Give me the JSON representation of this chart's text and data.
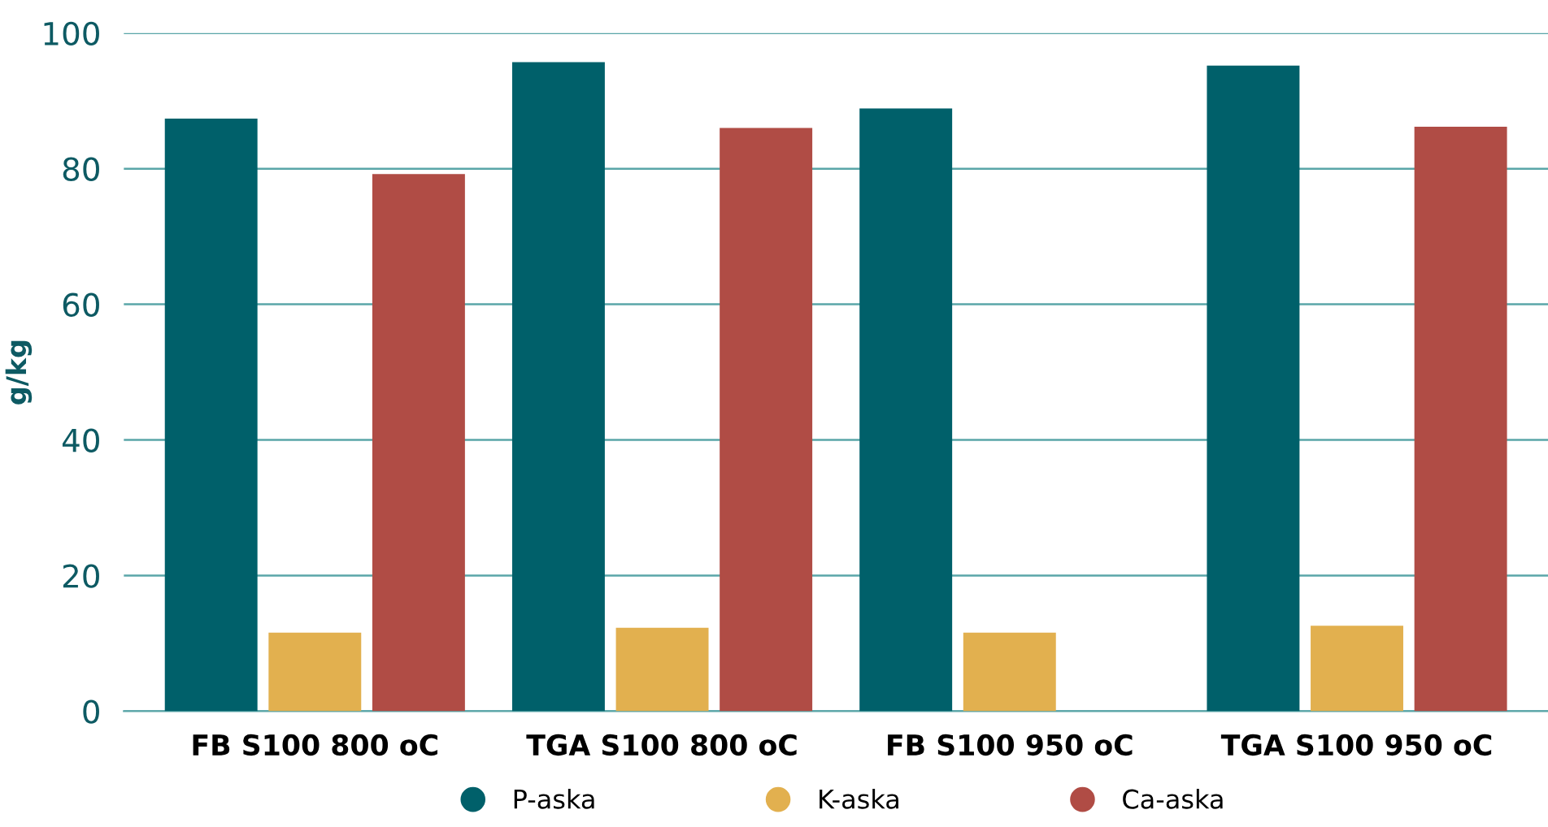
{
  "chart_data": {
    "type": "bar",
    "ylabel": "g/kg",
    "categories": [
      "FB S100 800 oC",
      "TGA S100 800 oC",
      "FB S100 950 oC",
      "TGA S100 950 oC"
    ],
    "series": [
      {
        "name": "P-aska",
        "color": "#00606a",
        "values": [
          87.4,
          95.7,
          88.9,
          95.2
        ]
      },
      {
        "name": "K-aska",
        "color": "#e2b04f",
        "values": [
          11.6,
          12.3,
          11.6,
          12.6
        ]
      },
      {
        "name": "Ca-aska",
        "color": "#b04c45",
        "values": [
          79.2,
          86.0,
          null,
          86.2
        ]
      }
    ],
    "ylim": [
      0,
      100
    ],
    "yticks": [
      0,
      20,
      40,
      60,
      80,
      100
    ],
    "grid": "y",
    "legend": "bottom"
  }
}
